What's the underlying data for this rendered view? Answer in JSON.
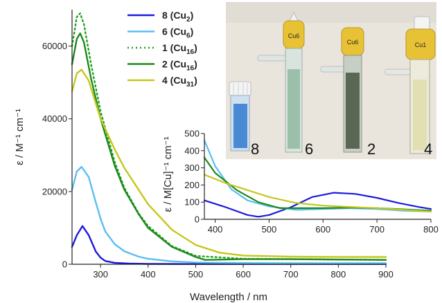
{
  "chart_data": [
    {
      "type": "line",
      "xlabel": "Wavelength / nm",
      "ylabel": "ε / M⁻¹ cm⁻¹",
      "xlim": [
        240,
        900
      ],
      "ylim": [
        0,
        70000
      ],
      "xticks": [
        300,
        400,
        500,
        600,
        700,
        800,
        900
      ],
      "yticks": [
        0,
        20000,
        40000,
        60000
      ],
      "legend_position": "top-center",
      "series": [
        {
          "name": "8 (Cu2)",
          "label_main": "8 (Cu",
          "label_sub": "2",
          "color": "#1a1adf",
          "dash": false,
          "x": [
            240,
            250,
            262,
            275,
            290,
            300,
            310,
            330,
            360,
            400,
            500,
            600,
            700,
            800,
            900
          ],
          "y": [
            4800,
            8000,
            10500,
            8000,
            3500,
            1800,
            900,
            400,
            200,
            100,
            50,
            50,
            50,
            50,
            50
          ]
        },
        {
          "name": "6 (Cu6)",
          "label_main": "6 (Cu",
          "label_sub": "6",
          "color": "#5bbdf0",
          "dash": false,
          "x": [
            240,
            250,
            260,
            275,
            290,
            300,
            310,
            330,
            350,
            380,
            400,
            450,
            500,
            600,
            700,
            800,
            900
          ],
          "y": [
            20500,
            25500,
            26800,
            24000,
            17000,
            12500,
            9000,
            5500,
            3600,
            2100,
            1500,
            800,
            500,
            350,
            300,
            300,
            300
          ]
        },
        {
          "name": "1 (Cu16)",
          "label_main": "1 (Cu",
          "label_sub": "16",
          "color": "#22a022",
          "dash": true,
          "x": [
            240,
            250,
            257,
            265,
            280,
            300,
            330,
            350,
            380,
            400,
            450,
            500,
            600,
            700,
            800,
            900
          ],
          "y": [
            60000,
            68000,
            69000,
            66000,
            55000,
            42000,
            28000,
            21000,
            14000,
            10500,
            5000,
            2300,
            1500,
            1400,
            1300,
            1200
          ]
        },
        {
          "name": "2 (Cu16)",
          "label_main": "2 (Cu",
          "label_sub": "16",
          "color": "#1a8a1a",
          "dash": false,
          "x": [
            240,
            250,
            257,
            265,
            280,
            300,
            330,
            350,
            380,
            400,
            450,
            500,
            520,
            600,
            700,
            800,
            900
          ],
          "y": [
            55000,
            62000,
            63500,
            61000,
            51000,
            40000,
            27000,
            20500,
            13800,
            10000,
            4800,
            2000,
            1200,
            1400,
            1400,
            1300,
            1200
          ]
        },
        {
          "name": "4 (Cu31)",
          "label_main": "4 (Cu",
          "label_sub": "31",
          "color": "#c6c61c",
          "dash": false,
          "x": [
            240,
            250,
            260,
            275,
            300,
            330,
            350,
            400,
            450,
            500,
            550,
            600,
            700,
            800,
            900
          ],
          "y": [
            47500,
            52500,
            53500,
            50500,
            40000,
            31500,
            26500,
            16500,
            9500,
            5300,
            3200,
            2400,
            2100,
            2000,
            2000
          ]
        }
      ]
    },
    {
      "type": "line",
      "xlabel": "",
      "ylabel": "ε / M[Cu]⁻¹ cm⁻¹",
      "xlim": [
        380,
        800
      ],
      "ylim": [
        0,
        500
      ],
      "xticks": [
        400,
        500,
        600,
        700,
        800
      ],
      "yticks": [
        0,
        100,
        200,
        300,
        400,
        500
      ],
      "series": [
        {
          "color": "#1a1adf",
          "x": [
            380,
            420,
            460,
            480,
            500,
            540,
            580,
            620,
            660,
            700,
            740,
            780,
            800
          ],
          "y": [
            110,
            70,
            25,
            15,
            25,
            70,
            130,
            155,
            148,
            125,
            95,
            70,
            60
          ]
        },
        {
          "color": "#5bbdf0",
          "x": [
            380,
            400,
            430,
            460,
            500,
            550,
            600,
            650,
            700,
            750,
            800
          ],
          "y": [
            460,
            310,
            175,
            110,
            75,
            55,
            60,
            65,
            60,
            50,
            45
          ]
        },
        {
          "color": "#1a8a1a",
          "x": [
            380,
            400,
            440,
            480,
            520,
            560,
            600,
            650,
            700,
            750,
            800
          ],
          "y": [
            360,
            270,
            170,
            100,
            65,
            65,
            65,
            68,
            65,
            58,
            50
          ]
        },
        {
          "color": "#c6c61c",
          "x": [
            380,
            420,
            460,
            500,
            550,
            600,
            650,
            700,
            750,
            800
          ],
          "y": [
            260,
            210,
            170,
            130,
            95,
            80,
            72,
            65,
            55,
            45
          ]
        }
      ]
    }
  ],
  "photo": {
    "vial_labels": [
      "8",
      "6",
      "2",
      "4"
    ],
    "cap_texts": [
      "Cu6",
      "Cu6",
      "Cu1"
    ],
    "colors": {
      "background": "#e9e4dc",
      "vial_blue": "#3b7fd0",
      "vial_green": "#8fb8a0",
      "vial_dark": "#54614e",
      "vial_yellow": "#e2deb0",
      "cap_yellow": "#e8c235"
    }
  }
}
